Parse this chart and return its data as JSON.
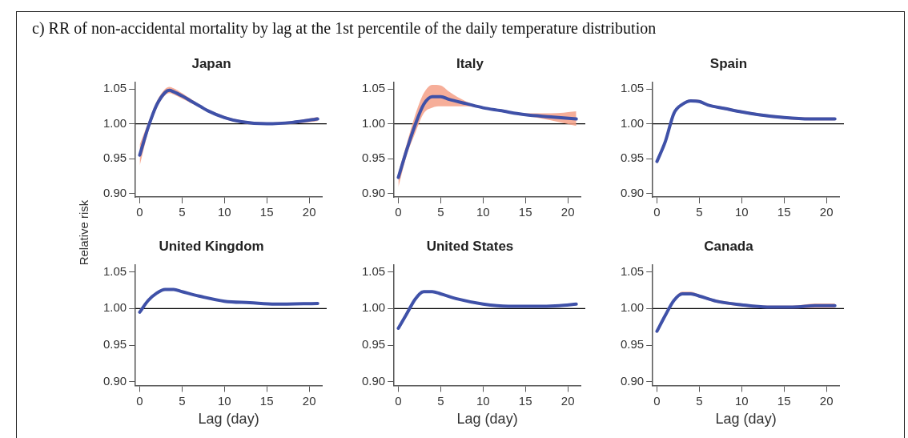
{
  "chart_data": [
    {
      "type": "line",
      "title": "Japan",
      "ylabel": "Relative risk",
      "annotations": [
        "c) RR of non-accidental mortality by lag at the 1st percentile of the daily temperature distribution"
      ],
      "x": [
        0,
        1,
        2,
        3,
        3.5,
        4,
        5,
        6,
        7,
        8,
        10,
        12,
        15,
        18,
        21
      ],
      "series": [
        {
          "color": "#3f51a8",
          "values": [
            0.955,
            0.995,
            1.027,
            1.045,
            1.048,
            1.046,
            1.04,
            1.033,
            1.026,
            1.019,
            1.009,
            1.003,
            1.0,
            1.002,
            1.007
          ],
          "lower": [
            0.94,
            0.988,
            1.022,
            1.041,
            1.044,
            1.042,
            1.036,
            1.03,
            1.024,
            1.017,
            1.007,
            1.001,
            0.999,
            1.0,
            1.004
          ],
          "upper": [
            0.97,
            1.002,
            1.032,
            1.05,
            1.053,
            1.051,
            1.044,
            1.036,
            1.028,
            1.021,
            1.011,
            1.005,
            1.002,
            1.004,
            1.01
          ]
        }
      ],
      "xlim": [
        -0.5,
        21.5
      ],
      "xticks": [
        0,
        5,
        10,
        15,
        20
      ],
      "ylim": [
        0.895,
        1.06
      ],
      "yticks": [
        {
          "value": 0.9,
          "label": "0.90"
        },
        {
          "value": 0.95,
          "label": "0.95"
        },
        {
          "value": 1,
          "label": "1.00"
        },
        {
          "value": 1.05,
          "label": "1.05"
        }
      ],
      "ref_lines": [
        {
          "axis": "y",
          "value": 1
        }
      ],
      "marker": "none",
      "line_style": "solid",
      "legend": false,
      "grid": false
    },
    {
      "type": "line",
      "title": "Italy",
      "x": [
        0,
        1,
        2,
        3,
        4,
        5,
        6,
        8,
        10,
        12,
        15,
        18,
        21
      ],
      "series": [
        {
          "color": "#3f51a8",
          "values": [
            0.923,
            0.963,
            0.999,
            1.028,
            1.039,
            1.039,
            1.035,
            1.029,
            1.023,
            1.019,
            1.013,
            1.01,
            1.007
          ],
          "lower": [
            0.909,
            0.955,
            0.987,
            1.015,
            1.023,
            1.025,
            1.025,
            1.025,
            1.022,
            1.018,
            1.012,
            1.005,
            0.997
          ],
          "upper": [
            0.93,
            0.972,
            1.013,
            1.044,
            1.056,
            1.055,
            1.046,
            1.032,
            1.024,
            1.019,
            1.015,
            1.015,
            1.018
          ]
        }
      ],
      "xlim": [
        -0.5,
        21.5
      ],
      "xticks": [
        0,
        5,
        10,
        15,
        20
      ],
      "ylim": [
        0.895,
        1.06
      ],
      "yticks": [
        {
          "value": 0.9,
          "label": "0.90"
        },
        {
          "value": 0.95,
          "label": "0.95"
        },
        {
          "value": 1,
          "label": "1.00"
        },
        {
          "value": 1.05,
          "label": "1.05"
        }
      ],
      "ref_lines": [
        {
          "axis": "y",
          "value": 1
        }
      ],
      "marker": "none",
      "line_style": "solid",
      "legend": false,
      "grid": false
    },
    {
      "type": "line",
      "title": "Spain",
      "x": [
        0,
        1,
        2,
        3,
        4,
        5,
        6,
        8,
        10,
        12,
        15,
        18,
        21
      ],
      "series": [
        {
          "color": "#3f51a8",
          "values": [
            0.946,
            0.975,
            1.015,
            1.028,
            1.033,
            1.032,
            1.027,
            1.022,
            1.017,
            1.013,
            1.009,
            1.007,
            1.007
          ],
          "lower": [
            0.944,
            0.973,
            1.013,
            1.026,
            1.031,
            1.03,
            1.025,
            1.02,
            1.015,
            1.011,
            1.007,
            1.005,
            1.005
          ],
          "upper": [
            0.948,
            0.977,
            1.017,
            1.03,
            1.035,
            1.034,
            1.029,
            1.024,
            1.019,
            1.015,
            1.011,
            1.009,
            1.009
          ]
        }
      ],
      "xlim": [
        -0.5,
        21.5
      ],
      "xticks": [
        0,
        5,
        10,
        15,
        20
      ],
      "ylim": [
        0.895,
        1.06
      ],
      "yticks": [
        {
          "value": 0.9,
          "label": "0.90"
        },
        {
          "value": 0.95,
          "label": "0.95"
        },
        {
          "value": 1,
          "label": "1.00"
        },
        {
          "value": 1.05,
          "label": "1.05"
        }
      ],
      "ref_lines": [
        {
          "axis": "y",
          "value": 1
        }
      ],
      "marker": "none",
      "line_style": "solid",
      "legend": false,
      "grid": false
    },
    {
      "type": "line",
      "title": "United Kingdom",
      "xlabel": "Lag (day)",
      "x": [
        0,
        1,
        2,
        3,
        4,
        5,
        7,
        10,
        13,
        16,
        21
      ],
      "series": [
        {
          "color": "#3f51a8",
          "values": [
            0.995,
            1.011,
            1.021,
            1.026,
            1.026,
            1.023,
            1.017,
            1.01,
            1.008,
            1.006,
            1.007
          ]
        }
      ],
      "xlim": [
        -0.5,
        21.5
      ],
      "xticks": [
        0,
        5,
        10,
        15,
        20
      ],
      "ylim": [
        0.895,
        1.06
      ],
      "yticks": [
        {
          "value": 0.9,
          "label": "0.90"
        },
        {
          "value": 0.95,
          "label": "0.95"
        },
        {
          "value": 1,
          "label": "1.00"
        },
        {
          "value": 1.05,
          "label": "1.05"
        }
      ],
      "ref_lines": [
        {
          "axis": "y",
          "value": 1
        }
      ],
      "marker": "none",
      "line_style": "solid",
      "legend": false,
      "grid": false
    },
    {
      "type": "line",
      "title": "United States",
      "xlabel": "Lag (day)",
      "x": [
        0,
        1,
        2,
        3,
        4,
        5,
        7,
        10,
        13,
        16,
        19,
        21
      ],
      "series": [
        {
          "color": "#3f51a8",
          "values": [
            0.973,
            0.993,
            1.013,
            1.023,
            1.023,
            1.02,
            1.013,
            1.006,
            1.003,
            1.003,
            1.004,
            1.006
          ]
        }
      ],
      "xlim": [
        -0.5,
        21.5
      ],
      "xticks": [
        0,
        5,
        10,
        15,
        20
      ],
      "ylim": [
        0.895,
        1.06
      ],
      "yticks": [
        {
          "value": 0.9,
          "label": "0.90"
        },
        {
          "value": 0.95,
          "label": "0.95"
        },
        {
          "value": 1,
          "label": "1.00"
        },
        {
          "value": 1.05,
          "label": "1.05"
        }
      ],
      "ref_lines": [
        {
          "axis": "y",
          "value": 1
        }
      ],
      "marker": "none",
      "line_style": "solid",
      "legend": false,
      "grid": false
    },
    {
      "type": "line",
      "title": "Canada",
      "xlabel": "Lag (day)",
      "x": [
        0,
        1,
        2,
        3,
        4,
        5,
        7,
        10,
        13,
        16,
        19,
        21
      ],
      "series": [
        {
          "color": "#3f51a8",
          "values": [
            0.969,
            0.991,
            1.011,
            1.02,
            1.02,
            1.017,
            1.01,
            1.005,
            1.002,
            1.002,
            1.004,
            1.004
          ],
          "lower": [
            0.966,
            0.989,
            1.009,
            1.018,
            1.018,
            1.015,
            1.008,
            1.003,
            1.0,
            1.0,
            1.001,
            1.001
          ],
          "upper": [
            0.972,
            0.993,
            1.013,
            1.023,
            1.023,
            1.019,
            1.012,
            1.007,
            1.004,
            1.004,
            1.007,
            1.007
          ]
        }
      ],
      "xlim": [
        -0.5,
        21.5
      ],
      "xticks": [
        0,
        5,
        10,
        15,
        20
      ],
      "ylim": [
        0.895,
        1.06
      ],
      "yticks": [
        {
          "value": 0.9,
          "label": "0.90"
        },
        {
          "value": 0.95,
          "label": "0.95"
        },
        {
          "value": 1,
          "label": "1.00"
        },
        {
          "value": 1.05,
          "label": "1.05"
        }
      ],
      "ref_lines": [
        {
          "axis": "y",
          "value": 1
        }
      ],
      "marker": "none",
      "line_style": "solid",
      "legend": false,
      "grid": false
    }
  ]
}
